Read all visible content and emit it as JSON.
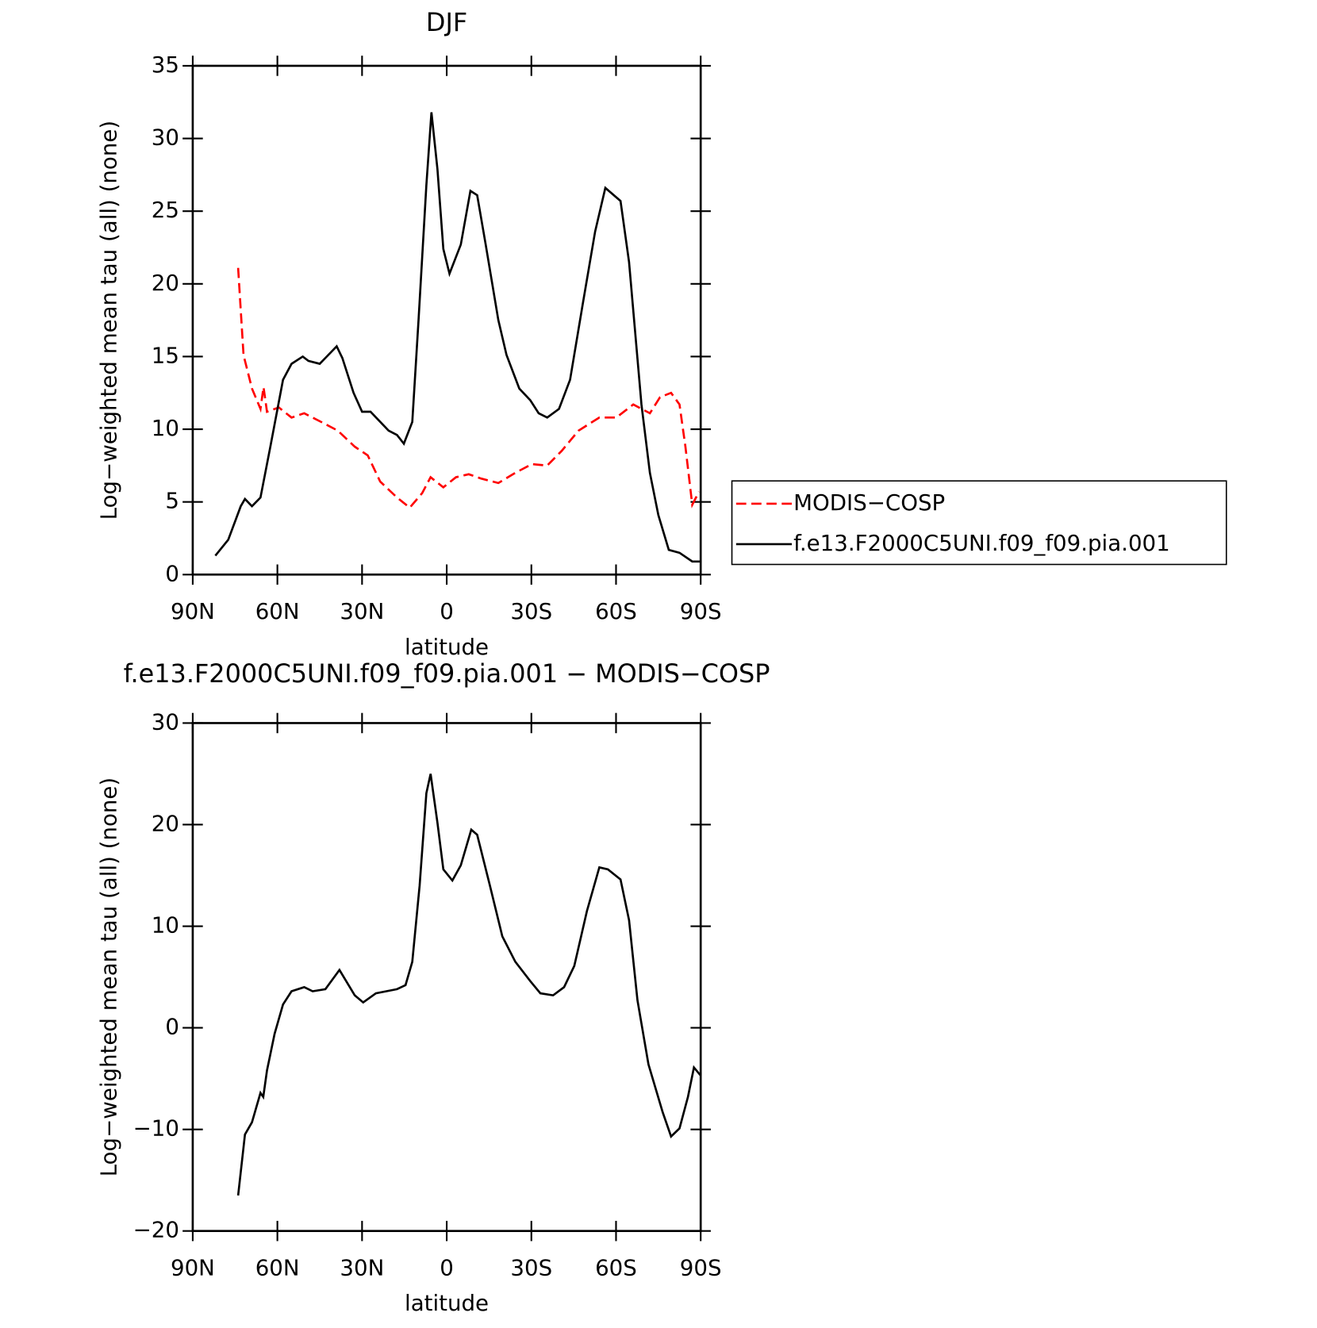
{
  "chart_data": [
    {
      "type": "line",
      "title": "DJF",
      "x_label": "latitude",
      "y_label": "Log−weighted mean tau (all) (none)",
      "xlim": [
        90,
        -90
      ],
      "xticks": [
        {
          "value": 90,
          "label": "90N"
        },
        {
          "value": 60,
          "label": "60N"
        },
        {
          "value": 30,
          "label": "30N"
        },
        0,
        {
          "value": -30,
          "label": "30S"
        },
        {
          "value": -60,
          "label": "60S"
        },
        {
          "value": -90,
          "label": "90S"
        }
      ],
      "ylim": [
        0,
        35
      ],
      "yticks": [
        0,
        5,
        10,
        15,
        20,
        25,
        30,
        35
      ],
      "legend": "right",
      "series": [
        {
          "name": "MODIS−COSP",
          "color": "#ff0000",
          "dashed": true,
          "x": [
            73.9,
            72,
            69,
            66,
            64.9,
            63.7,
            59.5,
            55,
            50.5,
            44.5,
            38.6,
            32.6,
            28,
            23.6,
            17.6,
            13.1,
            8.7,
            5.7,
            1.2,
            -3.3,
            -7.8,
            -12.3,
            -18.3,
            -24.3,
            -30.2,
            -35.6,
            -40.7,
            -46.7,
            -54.1,
            -60.1,
            -66.1,
            -72,
            -75.6,
            -79.5,
            -82.5,
            -84.6,
            -87,
            -89.4
          ],
          "values": [
            21.1,
            15.1,
            12.8,
            11.4,
            12.9,
            11.2,
            11.5,
            10.8,
            11.1,
            10.5,
            9.9,
            8.8,
            8.2,
            6.4,
            5.3,
            4.6,
            5.6,
            6.7,
            6.0,
            6.7,
            6.9,
            6.6,
            6.3,
            7.0,
            7.6,
            7.5,
            8.5,
            9.9,
            10.8,
            10.8,
            11.7,
            11.1,
            12.2,
            12.5,
            11.7,
            8.8,
            4.8,
            5.7
          ]
        },
        {
          "name": "f.e13.F2000C5UNI.f09_f09.pia.001",
          "color": "#000000",
          "dashed": false,
          "x": [
            82,
            77.4,
            73,
            71.5,
            69,
            66,
            62.5,
            58,
            55,
            51,
            49,
            45,
            43,
            39,
            37,
            33,
            30,
            27,
            20.6,
            17.6,
            15.2,
            12.2,
            10,
            7.2,
            5.4,
            3.3,
            1.2,
            -1,
            -5,
            -8.4,
            -10.8,
            -13.8,
            -18.3,
            -21.2,
            -25.7,
            -29.6,
            -32.6,
            -35.6,
            -39.8,
            -43.7,
            -48.2,
            -52.6,
            -56.2,
            -61.6,
            -64.6,
            -69,
            -72,
            -75,
            -78.7,
            -82.5,
            -87,
            -90
          ],
          "values": [
            1.3,
            2.4,
            4.7,
            5.2,
            4.7,
            5.3,
            8.8,
            13.4,
            14.5,
            15.0,
            14.7,
            14.5,
            14.9,
            15.7,
            14.9,
            12.5,
            11.2,
            11.2,
            9.9,
            9.6,
            9.0,
            10.5,
            17.5,
            26.8,
            31.8,
            27.9,
            22.4,
            20.7,
            22.7,
            26.4,
            26.1,
            22.7,
            17.5,
            15.1,
            12.8,
            12.0,
            11.1,
            10.8,
            11.4,
            13.4,
            18.6,
            23.6,
            26.6,
            25.7,
            21.5,
            11.7,
            7.0,
            4.1,
            1.7,
            1.5,
            0.9,
            0.9
          ]
        }
      ]
    },
    {
      "type": "line",
      "title": "f.e13.F2000C5UNI.f09_f09.pia.001 − MODIS−COSP",
      "x_label": "latitude",
      "y_label": "Log−weighted mean tau (all) (none)",
      "xlim": [
        90,
        -90
      ],
      "xticks": [
        {
          "value": 90,
          "label": "90N"
        },
        {
          "value": 60,
          "label": "60N"
        },
        {
          "value": 30,
          "label": "30N"
        },
        0,
        {
          "value": -30,
          "label": "30S"
        },
        {
          "value": -60,
          "label": "60S"
        },
        {
          "value": -90,
          "label": "90S"
        }
      ],
      "ylim": [
        -20,
        30
      ],
      "yticks": [
        -20,
        -10,
        0,
        10,
        20,
        30
      ],
      "yticklabels": [
        "−20",
        "−10",
        "0",
        "10",
        "20",
        "30"
      ],
      "series": [
        {
          "color": "#000000",
          "dashed": false,
          "x": [
            73.9,
            71.5,
            69,
            66,
            65,
            63.7,
            61,
            58,
            55,
            50.5,
            47.5,
            43,
            38,
            32.6,
            29.6,
            25.1,
            17.6,
            14.6,
            12.2,
            9.6,
            7.2,
            5.7,
            3.3,
            1.2,
            -2,
            -5,
            -8.7,
            -10.8,
            -15.3,
            -19.7,
            -24.3,
            -29.6,
            -33.2,
            -37.7,
            -41.6,
            -45.2,
            -49.7,
            -54.1,
            -57.1,
            -61.6,
            -64.6,
            -67.6,
            -71.5,
            -76.5,
            -79.5,
            -82.5,
            -85.5,
            -87.6,
            -90
          ],
          "values": [
            -16.5,
            -10.5,
            -9.3,
            -6.4,
            -6.8,
            -4.2,
            -0.6,
            2.3,
            3.6,
            4.0,
            3.6,
            3.8,
            5.7,
            3.2,
            2.5,
            3.4,
            3.8,
            4.2,
            6.5,
            14,
            23.1,
            25,
            20.2,
            15.6,
            14.5,
            16,
            19.5,
            19,
            14,
            9.0,
            6.5,
            4.6,
            3.4,
            3.2,
            4.0,
            6.1,
            11.5,
            15.8,
            15.6,
            14.6,
            10.6,
            2.7,
            -3.6,
            -8.3,
            -10.7,
            -9.9,
            -6.8,
            -3.9,
            -4.7
          ]
        }
      ]
    }
  ]
}
